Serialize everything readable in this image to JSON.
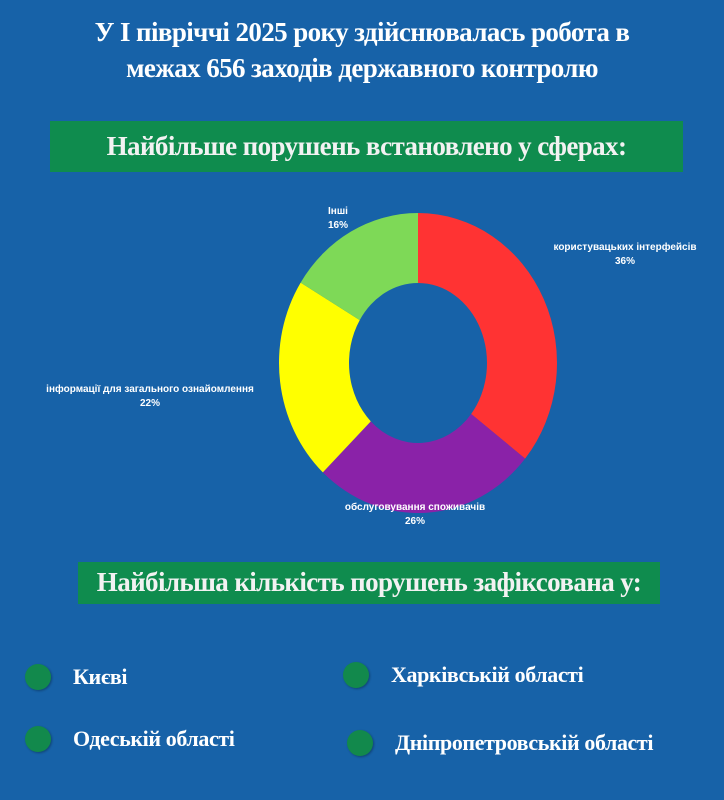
{
  "header": {
    "line1": "У І півріччі 2025 року здійснювалась робота в",
    "line2": "межах 656 заходів державного контролю"
  },
  "banner1": "Найбільше порушень встановлено у сферах:",
  "banner2": "Найбільша кількість порушень зафіксована у:",
  "chart_data": {
    "type": "pie",
    "donut": true,
    "categories": [
      "користувацьких інтерфейсів",
      "обслуговування споживачів",
      "інформації для загального ознайомлення",
      "Інші"
    ],
    "values": [
      36,
      26,
      22,
      16
    ],
    "value_labels": [
      "36%",
      "26%",
      "22%",
      "16%"
    ],
    "colors": [
      "#ff3333",
      "#8a22a8",
      "#ffff00",
      "#7ed957"
    ]
  },
  "regions": [
    {
      "label": "Києві"
    },
    {
      "label": "Харківській області"
    },
    {
      "label": "Одеській області"
    },
    {
      "label": "Дніпропетровській області"
    }
  ],
  "colors": {
    "background": "#1762a8",
    "banner": "#0f8c4e",
    "bullet": "#12894c"
  }
}
